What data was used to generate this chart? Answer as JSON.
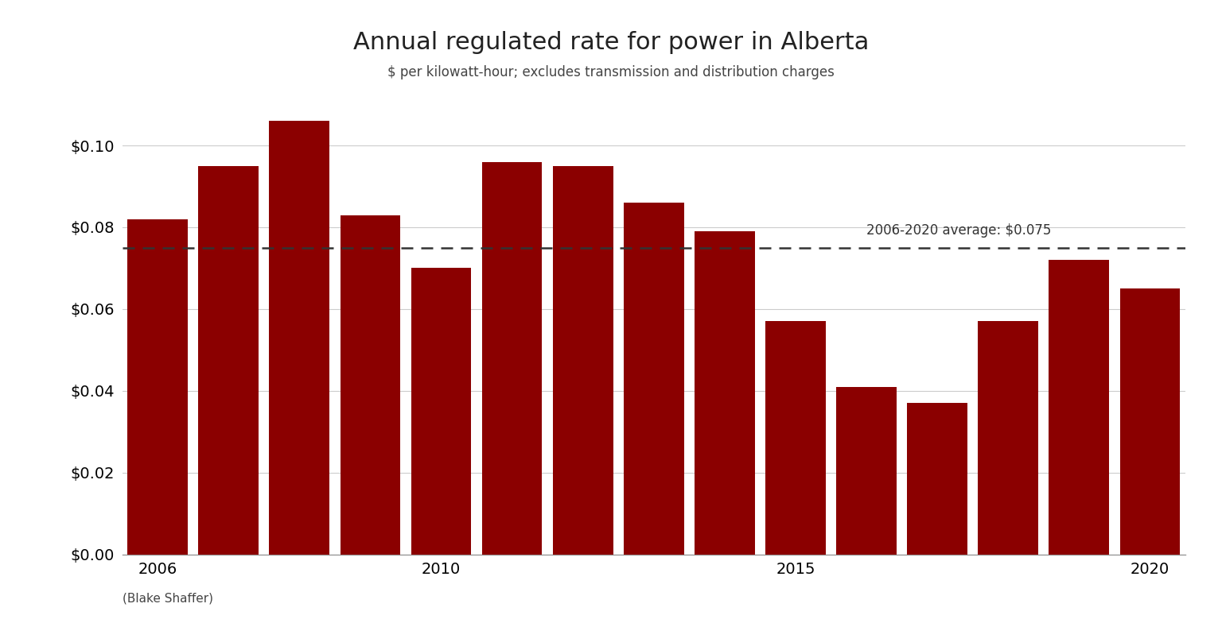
{
  "title": "Annual regulated rate for power in Alberta",
  "subtitle": "$ per kilowatt-hour; excludes transmission and distribution charges",
  "attribution": "(Blake Shaffer)",
  "years": [
    2006,
    2007,
    2008,
    2009,
    2010,
    2011,
    2012,
    2013,
    2014,
    2015,
    2016,
    2017,
    2018,
    2019,
    2020
  ],
  "values": [
    0.082,
    0.095,
    0.106,
    0.083,
    0.07,
    0.096,
    0.095,
    0.086,
    0.079,
    0.057,
    0.041,
    0.037,
    0.057,
    0.072,
    0.065
  ],
  "bar_color": "#8B0000",
  "average_value": 0.075,
  "average_label": "2006-2020 average: $0.075",
  "ylim": [
    0,
    0.115
  ],
  "yticks": [
    0.0,
    0.02,
    0.04,
    0.06,
    0.08,
    0.1
  ],
  "xtick_years": [
    2006,
    2010,
    2015,
    2020
  ],
  "background_color": "#ffffff",
  "title_fontsize": 22,
  "subtitle_fontsize": 12,
  "attribution_fontsize": 11,
  "tick_fontsize": 14,
  "avg_line_color": "#333333",
  "avg_text_fontsize": 12,
  "grid_color": "#cccccc",
  "bar_width": 0.85
}
